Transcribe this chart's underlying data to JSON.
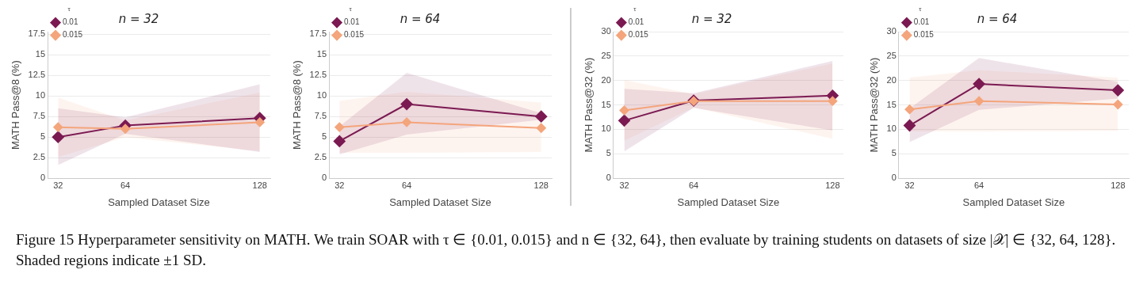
{
  "chart_data": [
    {
      "type": "line",
      "title": "n = 32",
      "xlabel": "Sampled Dataset Size",
      "ylabel": "MATH Pass@8 (%)",
      "legend_title": "τ",
      "x": [
        32,
        64,
        128
      ],
      "xlim": [
        27,
        133
      ],
      "xticks": [
        32,
        64,
        128
      ],
      "ylim": [
        0,
        17.8
      ],
      "yticks": [
        0,
        2.5,
        5,
        7.5,
        10,
        12.5,
        15,
        17.5
      ],
      "grid": "y",
      "legend": "top left",
      "marker": "diamond",
      "line_style": "solid",
      "annotations": [
        "Figure 15 Hyperparameter sensitivity on MATH. We train SOAR with τ ∈ {0.01, 0.015} and n ∈ {32, 64}, then evaluate by training students on datasets of size |𝒳| ∈ {32, 64, 128}. Shaded regions indicate ±1 SD."
      ],
      "series": [
        {
          "name": "0.01",
          "color": "#7b1a52",
          "values": [
            5.0,
            6.4,
            7.3
          ],
          "lower": [
            1.6,
            5.4,
            3.2
          ],
          "upper": [
            8.5,
            7.4,
            11.4
          ]
        },
        {
          "name": "0.015",
          "color": "#f4a57c",
          "values": [
            6.2,
            6.0,
            6.8
          ],
          "lower": [
            2.6,
            5.0,
            3.3
          ],
          "upper": [
            9.8,
            7.0,
            10.4
          ]
        }
      ]
    },
    {
      "type": "line",
      "title": "n = 64",
      "xlabel": "Sampled Dataset Size",
      "ylabel": "MATH Pass@8 (%)",
      "legend_title": "τ",
      "x": [
        32,
        64,
        128
      ],
      "xlim": [
        27,
        133
      ],
      "xticks": [
        32,
        64,
        128
      ],
      "ylim": [
        0,
        17.8
      ],
      "yticks": [
        0,
        2.5,
        5,
        7.5,
        10,
        12.5,
        15,
        17.5
      ],
      "grid": "y",
      "legend": "top left",
      "marker": "diamond",
      "line_style": "solid",
      "series": [
        {
          "name": "0.01",
          "color": "#7b1a52",
          "values": [
            4.5,
            9.0,
            7.5
          ],
          "lower": [
            2.9,
            5.3,
            7.1
          ],
          "upper": [
            6.3,
            12.8,
            7.9
          ]
        },
        {
          "name": "0.015",
          "color": "#f4a57c",
          "values": [
            6.2,
            6.8,
            6.1
          ],
          "lower": [
            3.1,
            3.1,
            3.2
          ],
          "upper": [
            9.4,
            10.5,
            9.2
          ]
        }
      ]
    },
    {
      "type": "line",
      "title": "n = 32",
      "xlabel": "Sampled Dataset Size",
      "ylabel": "MATH Pass@32 (%)",
      "legend_title": "τ",
      "x": [
        32,
        64,
        128
      ],
      "xlim": [
        27,
        133
      ],
      "xticks": [
        32,
        64,
        128
      ],
      "ylim": [
        0,
        30
      ],
      "yticks": [
        0,
        5,
        10,
        15,
        20,
        25,
        30
      ],
      "grid": "y",
      "legend": "top left",
      "marker": "diamond",
      "line_style": "solid",
      "series": [
        {
          "name": "0.01",
          "color": "#7b1a52",
          "values": [
            11.8,
            15.9,
            16.9
          ],
          "lower": [
            5.5,
            14.4,
            9.8
          ],
          "upper": [
            18.3,
            17.4,
            24.0
          ]
        },
        {
          "name": "0.015",
          "color": "#f4a57c",
          "values": [
            13.9,
            15.8,
            15.8
          ],
          "lower": [
            7.7,
            14.5,
            8.1
          ],
          "upper": [
            20.1,
            17.2,
            23.5
          ]
        }
      ]
    },
    {
      "type": "line",
      "title": "n = 64",
      "xlabel": "Sampled Dataset Size",
      "ylabel": "MATH Pass@32 (%)",
      "legend_title": "τ",
      "x": [
        32,
        64,
        128
      ],
      "xlim": [
        27,
        133
      ],
      "xticks": [
        32,
        64,
        128
      ],
      "ylim": [
        0,
        30
      ],
      "yticks": [
        0,
        5,
        10,
        15,
        20,
        25,
        30
      ],
      "grid": "y",
      "legend": "top left",
      "marker": "diamond",
      "line_style": "solid",
      "series": [
        {
          "name": "0.01",
          "color": "#7b1a52",
          "values": [
            10.8,
            19.3,
            18.0
          ],
          "lower": [
            7.4,
            14.0,
            16.3
          ],
          "upper": [
            14.3,
            24.6,
            19.7
          ]
        },
        {
          "name": "0.015",
          "color": "#f4a57c",
          "values": [
            14.1,
            15.8,
            15.1
          ],
          "lower": [
            9.6,
            9.6,
            9.7
          ],
          "upper": [
            20.6,
            22.1,
            20.6
          ]
        }
      ]
    }
  ]
}
